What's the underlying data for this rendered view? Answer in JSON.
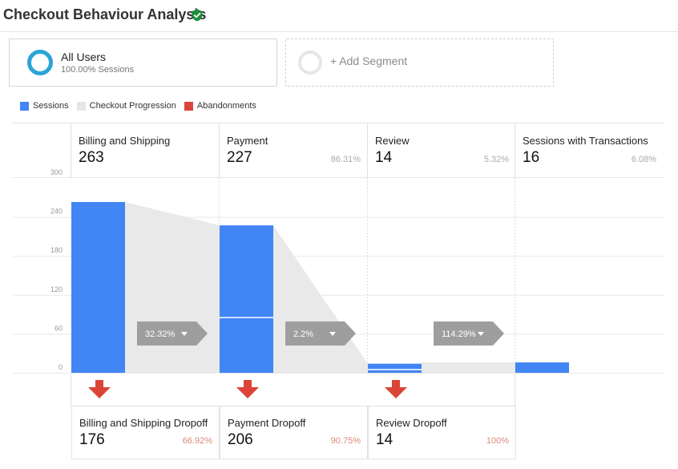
{
  "header": {
    "title": "Checkout Behaviour Analysis",
    "verified_icon": "verified-shield-icon"
  },
  "segments": [
    {
      "name": "All Users",
      "subtitle": "100.00% Sessions",
      "ring_color": "#2aa3d8"
    },
    {
      "name": "+ Add Segment"
    }
  ],
  "legend": [
    {
      "label": "Sessions",
      "color": "#4285f4"
    },
    {
      "label": "Checkout Progression",
      "color": "#e6e6e6"
    },
    {
      "label": "Abandonments",
      "color": "#db4437"
    }
  ],
  "chart_data": {
    "type": "bar",
    "y_ticks": [
      0,
      60,
      120,
      180,
      240,
      300
    ],
    "ylim": [
      0,
      300
    ],
    "steps": [
      {
        "name": "Billing and Shipping",
        "value": 263,
        "percent": "",
        "continued": null,
        "conversion": "32.32%",
        "dropoff": {
          "name": "Billing and Shipping Dropoff",
          "value": 176,
          "percent": "66.92%"
        }
      },
      {
        "name": "Payment",
        "value": 227,
        "percent": "86.31%",
        "continued": 85,
        "conversion": "2.2%",
        "dropoff": {
          "name": "Payment Dropoff",
          "value": 206,
          "percent": "90.75%"
        }
      },
      {
        "name": "Review",
        "value": 14,
        "percent": "5.32%",
        "continued": 5,
        "conversion": "114.29%",
        "dropoff": {
          "name": "Review Dropoff",
          "value": 14,
          "percent": "100%"
        }
      },
      {
        "name": "Sessions with Transactions",
        "value": 16,
        "percent": "6.08%",
        "continued": null,
        "conversion": null,
        "dropoff": null
      }
    ],
    "colors": {
      "sessions": "#4285f4",
      "progression": "#e9e9e9",
      "abandonment": "#db4437",
      "conversion_tag": "#9e9e9e"
    }
  }
}
